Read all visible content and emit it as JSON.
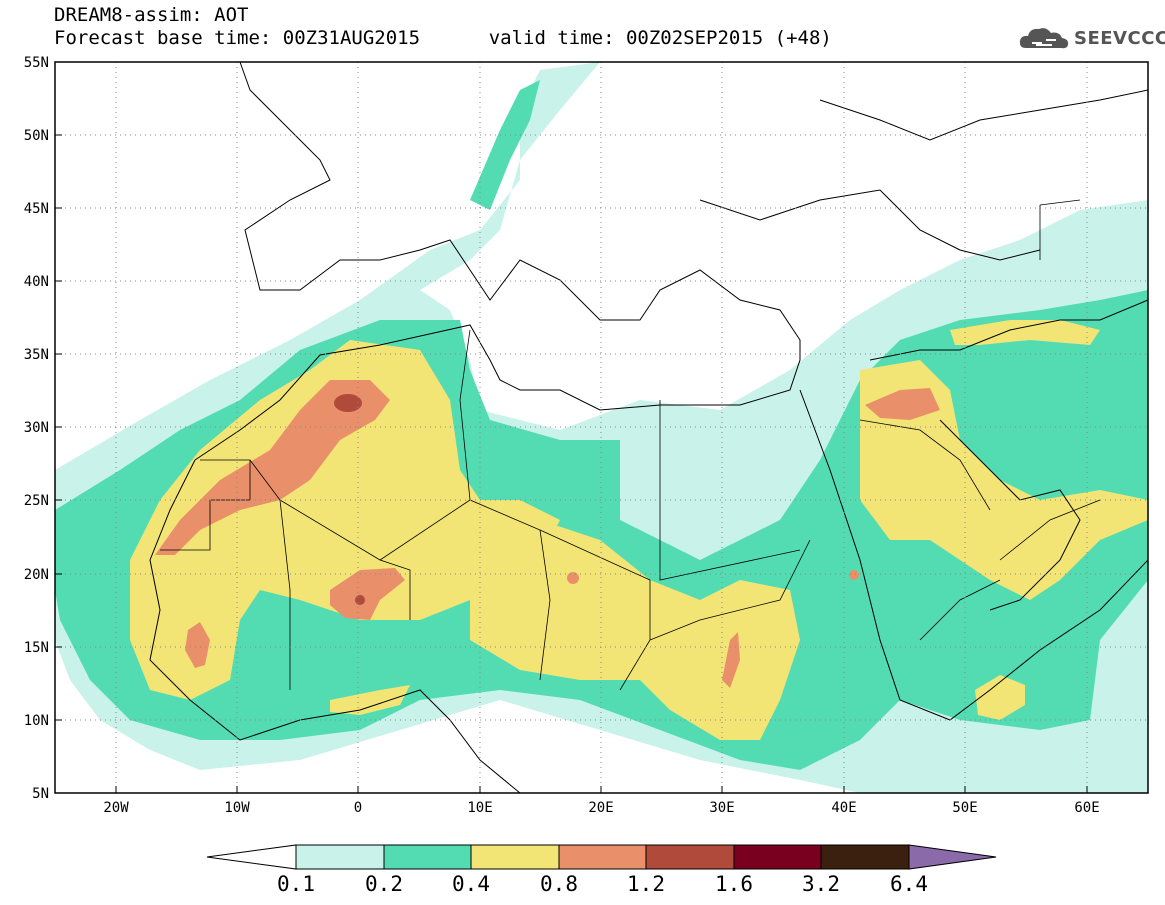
{
  "header": {
    "line1": "DREAM8-assim: AOT",
    "base_time_label": "Forecast base time: 00Z31AUG2015",
    "valid_time_label": "valid time: 00Z02SEP2015 (+48)"
  },
  "logo": {
    "text": "SEEVCCC",
    "icon": "cloud-icon"
  },
  "map": {
    "lon_range": [
      -25,
      65
    ],
    "lat_range": [
      5,
      55
    ],
    "lat_ticks": [
      "5N",
      "10N",
      "15N",
      "20N",
      "25N",
      "30N",
      "35N",
      "40N",
      "45N",
      "50N",
      "55N"
    ],
    "lon_ticks": [
      "20W",
      "10W",
      "0",
      "10E",
      "20E",
      "30E",
      "40E",
      "50E",
      "60E"
    ],
    "grid": "dotted"
  },
  "colorbar": {
    "labels": [
      "0.1",
      "0.2",
      "0.4",
      "0.8",
      "1.2",
      "1.6",
      "3.2",
      "6.4"
    ],
    "colors": [
      "#c9f2ea",
      "#53dcb2",
      "#f2e576",
      "#e9906a",
      "#b04a3a",
      "#7a0020",
      "#3b2010",
      "#8a6aa8"
    ]
  }
}
